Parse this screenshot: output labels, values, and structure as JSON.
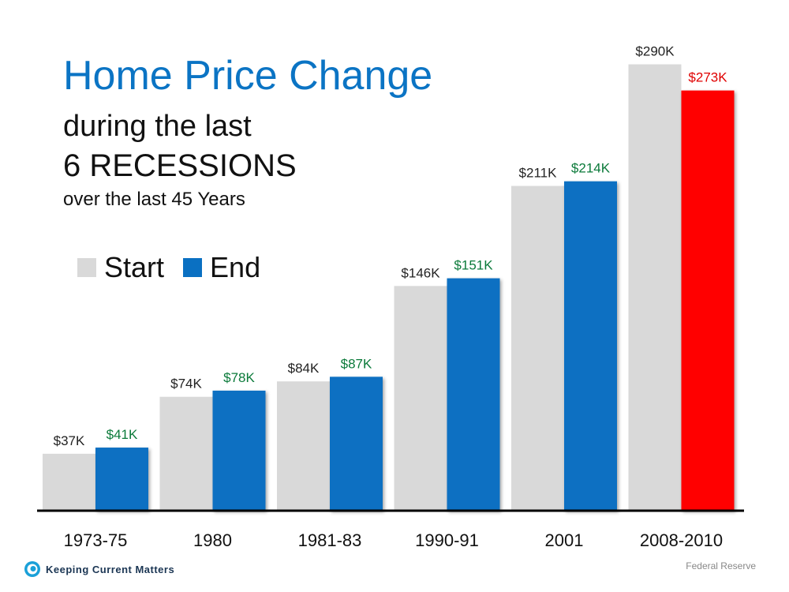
{
  "colors": {
    "start": "#d9d9d9",
    "end": "#0a70c2",
    "end_highlight": "#ff0000",
    "label_start": "#222222",
    "label_end": "#0b7a3a",
    "label_highlight": "#e00000",
    "title": "#0b74c4"
  },
  "footer": {
    "brand": "Keeping Current Matters",
    "source": "Federal Reserve"
  },
  "chart_data": {
    "type": "bar",
    "title": "Home Price Change",
    "subtitle_lines": [
      "during the last",
      "6 RECESSIONS",
      "over the last 45 Years"
    ],
    "categories": [
      "1973-75",
      "1980",
      "1981-83",
      "1990-91",
      "2001",
      "2008-2010"
    ],
    "series": [
      {
        "name": "Start",
        "values": [
          37,
          74,
          84,
          146,
          211,
          290
        ],
        "labels": [
          "$37K",
          "$74K",
          "$84K",
          "$146K",
          "$211K",
          "$290K"
        ]
      },
      {
        "name": "End",
        "values": [
          41,
          78,
          87,
          151,
          214,
          273
        ],
        "labels": [
          "$41K",
          "$78K",
          "$87K",
          "$151K",
          "$214K",
          "$273K"
        ]
      }
    ],
    "highlight": {
      "series": "End",
      "category": "2008-2010"
    },
    "ylim": [
      0,
      300
    ],
    "unit": "thousand USD",
    "grid": false,
    "legend": "top-left"
  }
}
